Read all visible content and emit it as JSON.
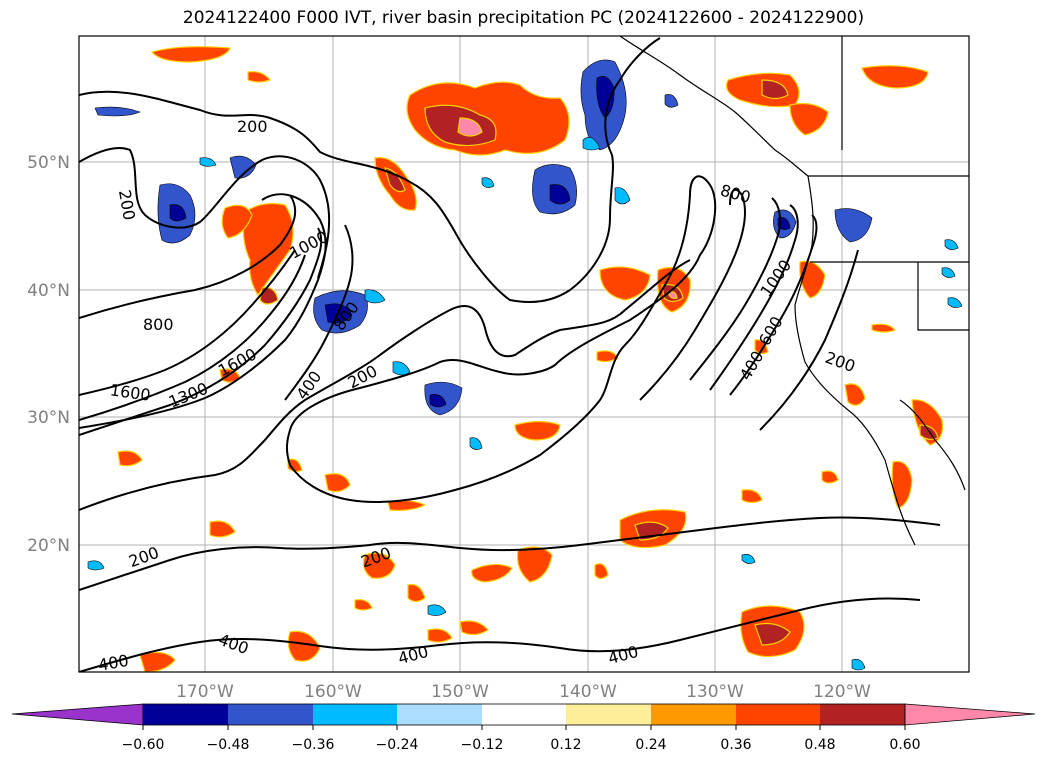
{
  "title": "2024122400 F000 IVT, river basin precipitation PC (2024122600 - 2024122900)",
  "map": {
    "lat_labels": [
      "50°N",
      "40°N",
      "30°N",
      "20°N"
    ],
    "lon_labels": [
      "170°W",
      "160°W",
      "150°W",
      "140°W",
      "130°W",
      "120°W"
    ],
    "gridline_color": "#b0b0b0",
    "tick_label_color": "#808080",
    "contour_labels": [
      "200",
      "200",
      "1000",
      "800",
      "1600",
      "1300",
      "1600",
      "800",
      "400",
      "200",
      "800",
      "1000",
      "600",
      "400",
      "200",
      "200",
      "200",
      "400",
      "400",
      "400",
      "400"
    ]
  },
  "colorbar": {
    "ticks": [
      "−0.60",
      "−0.48",
      "−0.36",
      "−0.24",
      "−0.12",
      "0.12",
      "0.24",
      "0.36",
      "0.48",
      "0.60"
    ],
    "colors": [
      "#9933cc",
      "#000099",
      "#3355cc",
      "#00bbff",
      "#aaddff",
      "#ffffff",
      "#ffee99",
      "#ff9900",
      "#ff4400",
      "#b22222",
      "#ff88aa"
    ]
  }
}
